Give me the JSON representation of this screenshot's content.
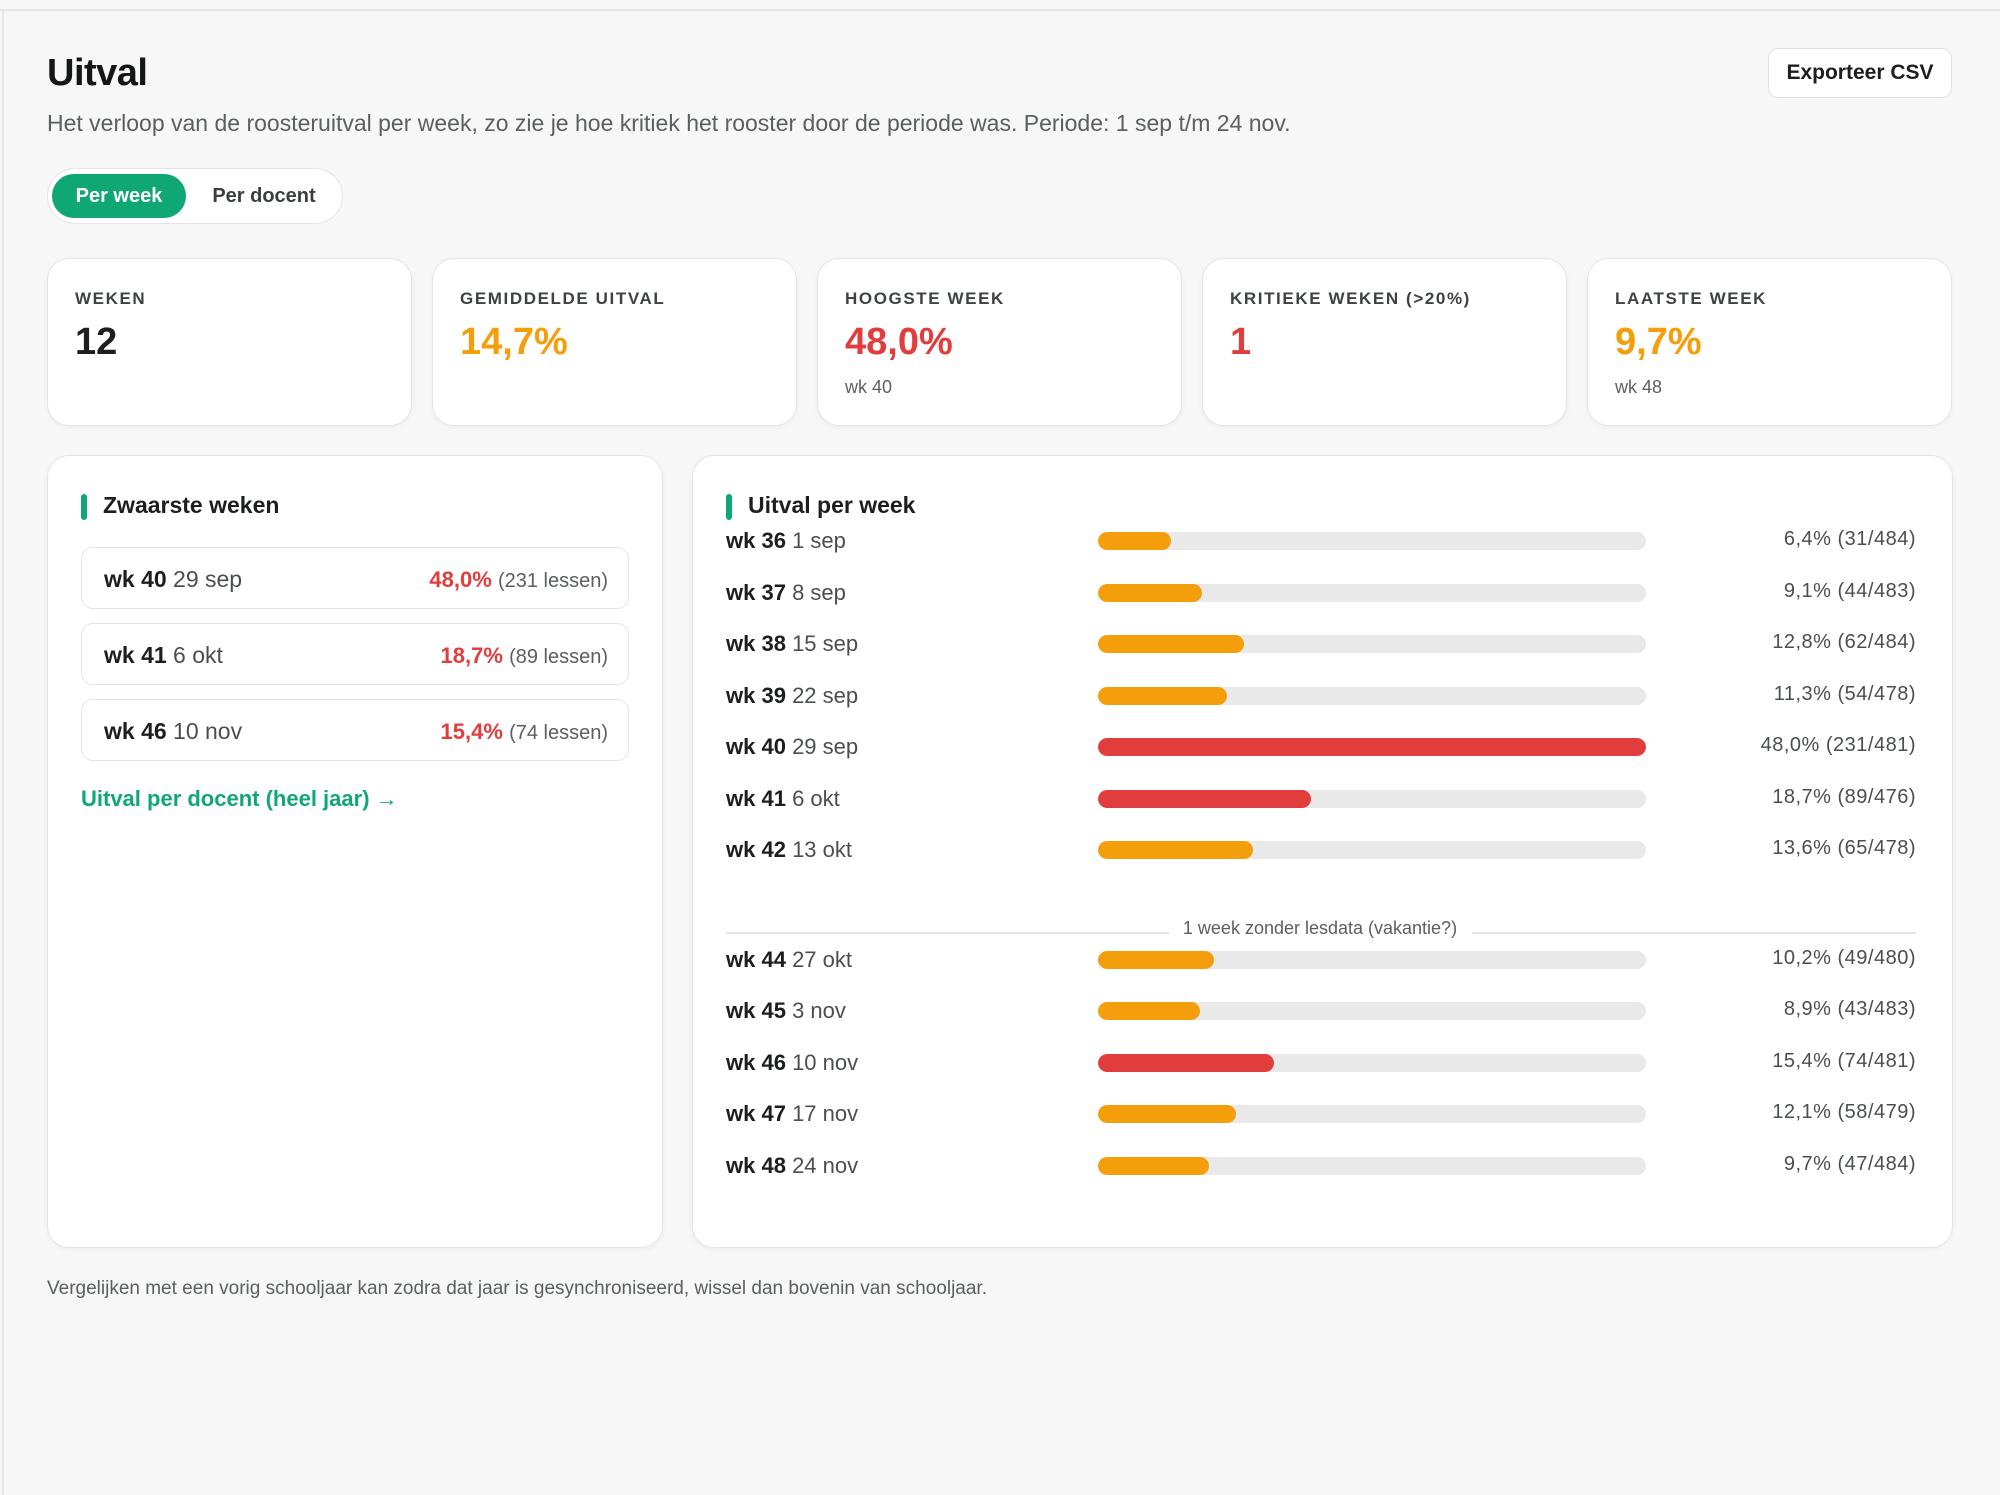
{
  "page": {
    "title": "Uitval",
    "subtitle": "Het verloop van de roosteruitval per week, zo zie je hoe kritiek het rooster door de periode was. Periode: 1 sep t/m 24 nov.",
    "export_label": "Exporteer CSV",
    "footnote": "Vergelijken met een vorig schooljaar kan zodra dat jaar is gesynchroniseerd, wissel dan bovenin van schooljaar."
  },
  "toggle": {
    "active": "Per week",
    "inactive": "Per docent"
  },
  "colors": {
    "accent": "#0fa874",
    "warning": "#f59e0b",
    "critical": "#e23d3d",
    "track": "#e8e9e8"
  },
  "stats": [
    {
      "label": "WEKEN",
      "value": "12",
      "sub": "",
      "color": "#1c1f1d"
    },
    {
      "label": "GEMIDDELDE UITVAL",
      "value": "14,7%",
      "sub": "",
      "color": "#f59e0b"
    },
    {
      "label": "HOOGSTE WEEK",
      "value": "48,0%",
      "sub": "wk 40",
      "color": "#e23d3d"
    },
    {
      "label": "KRITIEKE WEKEN (>20%)",
      "value": "1",
      "sub": "",
      "color": "#e23d3d"
    },
    {
      "label": "LAATSTE WEEK",
      "value": "9,7%",
      "sub": "wk 48",
      "color": "#f59e0b"
    }
  ],
  "heaviest": {
    "title": "Zwaarste weken",
    "items": [
      {
        "week": "wk 40",
        "date": "29 sep",
        "pct": "48,0%",
        "lessons": "(231 lessen)"
      },
      {
        "week": "wk 41",
        "date": "6 okt",
        "pct": "18,7%",
        "lessons": "(89 lessen)"
      },
      {
        "week": "wk 46",
        "date": "10 nov",
        "pct": "15,4%",
        "lessons": "(74 lessen)"
      }
    ],
    "link": "Uitval per docent (heel jaar) →"
  },
  "weekly": {
    "title": "Uitval per week",
    "gap_label": "1 week zonder lesdata (vakantie?)",
    "rows": [
      {
        "week": "wk 36",
        "date": "1 sep",
        "value": 6.4,
        "label": "6,4% (31/484)",
        "critical": false
      },
      {
        "week": "wk 37",
        "date": "8 sep",
        "value": 9.1,
        "label": "9,1% (44/483)",
        "critical": false
      },
      {
        "week": "wk 38",
        "date": "15 sep",
        "value": 12.8,
        "label": "12,8% (62/484)",
        "critical": false
      },
      {
        "week": "wk 39",
        "date": "22 sep",
        "value": 11.3,
        "label": "11,3% (54/478)",
        "critical": false
      },
      {
        "week": "wk 40",
        "date": "29 sep",
        "value": 48.0,
        "label": "48,0% (231/481)",
        "critical": true
      },
      {
        "week": "wk 41",
        "date": "6 okt",
        "value": 18.7,
        "label": "18,7% (89/476)",
        "critical": true
      },
      {
        "week": "wk 42",
        "date": "13 okt",
        "value": 13.6,
        "label": "13,6% (65/478)",
        "critical": false
      },
      {
        "week": "wk 44",
        "date": "27 okt",
        "value": 10.2,
        "label": "10,2% (49/480)",
        "critical": false
      },
      {
        "week": "wk 45",
        "date": "3 nov",
        "value": 8.9,
        "label": "8,9% (43/483)",
        "critical": false
      },
      {
        "week": "wk 46",
        "date": "10 nov",
        "value": 15.4,
        "label": "15,4% (74/481)",
        "critical": true
      },
      {
        "week": "wk 47",
        "date": "17 nov",
        "value": 12.1,
        "label": "12,1% (58/479)",
        "critical": false
      },
      {
        "week": "wk 48",
        "date": "24 nov",
        "value": 9.7,
        "label": "9,7% (47/484)",
        "critical": false
      }
    ]
  }
}
